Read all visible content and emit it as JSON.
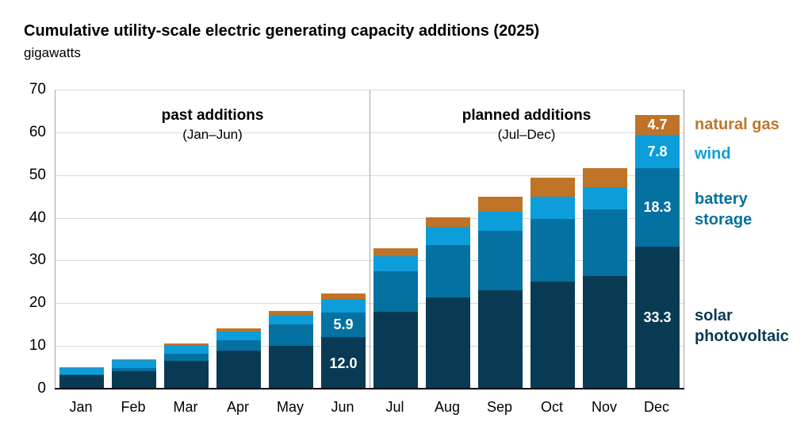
{
  "header": {
    "title": "Cumulative utility-scale electric generating capacity additions (2025)",
    "subtitle": "gigawatts"
  },
  "annotations": {
    "past": {
      "label": "past additions",
      "sublabel": "(Jan–Jun)"
    },
    "planned": {
      "label": "planned additions",
      "sublabel": "(Jul–Dec)"
    }
  },
  "legend": [
    {
      "label": "natural gas",
      "lines": [
        "natural gas"
      ],
      "color": "#c0752c"
    },
    {
      "label": "wind",
      "lines": [
        "wind"
      ],
      "color": "#0d9dda"
    },
    {
      "label": "battery storage",
      "lines": [
        "battery",
        "storage"
      ],
      "color": "#0471a0"
    },
    {
      "label": "solar photovoltaic",
      "lines": [
        "solar",
        "photovoltaic"
      ],
      "color": "#093a54"
    }
  ],
  "chart_data": {
    "type": "bar",
    "stacked": true,
    "title": "Cumulative utility-scale electric generating capacity additions (2025)",
    "ylabel": "gigawatts",
    "xlabel": "",
    "ylim": [
      0,
      70
    ],
    "ytick_step": 10,
    "grid": "horizontal",
    "divider_after_category": "Jun",
    "categories": [
      "Jan",
      "Feb",
      "Mar",
      "Apr",
      "May",
      "Jun",
      "Jul",
      "Aug",
      "Sep",
      "Oct",
      "Nov",
      "Dec"
    ],
    "series": [
      {
        "name": "solar photovoltaic",
        "color": "#093a54",
        "values": [
          3.2,
          4.0,
          6.5,
          9.0,
          10.0,
          12.0,
          18.0,
          21.3,
          23.0,
          25.0,
          26.4,
          33.3
        ]
      },
      {
        "name": "battery storage",
        "color": "#0471a0",
        "values": [
          0.2,
          0.8,
          1.6,
          2.4,
          5.0,
          5.9,
          9.5,
          12.4,
          13.9,
          14.7,
          15.5,
          18.3
        ]
      },
      {
        "name": "wind",
        "color": "#0d9dda",
        "values": [
          1.4,
          1.8,
          2.0,
          2.0,
          2.2,
          3.0,
          3.6,
          4.2,
          4.6,
          5.3,
          5.3,
          7.8
        ]
      },
      {
        "name": "natural gas",
        "color": "#bf7327",
        "values": [
          0.2,
          0.3,
          0.4,
          0.7,
          1.0,
          1.3,
          1.7,
          2.2,
          3.5,
          4.4,
          4.5,
          4.7
        ]
      }
    ],
    "bar_labels": [
      {
        "month": "Jun",
        "series": "battery storage",
        "text": "5.9"
      },
      {
        "month": "Jun",
        "series": "solar photovoltaic",
        "text": "12.0"
      },
      {
        "month": "Dec",
        "series": "natural gas",
        "text": "4.7"
      },
      {
        "month": "Dec",
        "series": "wind",
        "text": "7.8"
      },
      {
        "month": "Dec",
        "series": "battery storage",
        "text": "18.3"
      },
      {
        "month": "Dec",
        "series": "solar photovoltaic",
        "text": "33.3"
      }
    ]
  }
}
